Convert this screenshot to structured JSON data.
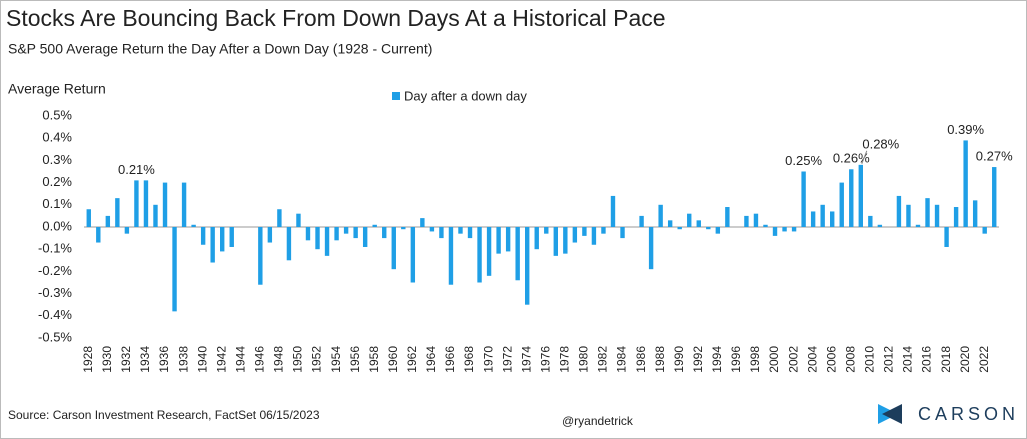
{
  "chart_data": {
    "type": "bar",
    "title": "Stocks Are Bouncing Back From Down Days At a Historical Pace",
    "subtitle": "S&P 500 Average Return the Day After a Down Day (1928 - Current)",
    "y_label": "Average Return",
    "source": "Source: Carson Investment Research, FactSet  06/15/2023",
    "credit": "@ryandetrick",
    "logo": "CARSON",
    "categories": [
      "1928",
      null,
      "1930",
      null,
      "1932",
      null,
      "1934",
      null,
      "1936",
      null,
      "1938",
      null,
      "1940",
      null,
      "1942",
      null,
      "1944",
      null,
      "1946",
      null,
      "1948",
      null,
      "1950",
      null,
      "1952",
      null,
      "1954",
      null,
      "1956",
      null,
      "1958",
      null,
      "1960",
      null,
      "1962",
      null,
      "1964",
      null,
      "1966",
      null,
      "1968",
      null,
      "1970",
      null,
      "1972",
      null,
      "1974",
      null,
      "1976",
      null,
      "1978",
      null,
      "1980",
      null,
      "1982",
      null,
      "1984",
      null,
      "1986",
      null,
      "1988",
      null,
      "1990",
      null,
      "1992",
      null,
      "1994",
      null,
      "1996",
      null,
      "1998",
      null,
      "2000",
      null,
      "2002",
      null,
      "2004",
      null,
      "2006",
      null,
      "2008",
      null,
      "2010",
      null,
      "2012",
      null,
      "2014",
      null,
      "2016",
      null,
      "2018",
      null,
      "2020",
      null,
      "2022",
      null
    ],
    "series": [
      {
        "name": "Day after a down day",
        "color": "#1f9fe6",
        "values": [
          0.08,
          -0.07,
          0.05,
          0.13,
          -0.03,
          0.21,
          0.21,
          0.1,
          0.2,
          -0.38,
          0.2,
          0.01,
          -0.08,
          -0.16,
          -0.11,
          -0.09,
          0.0,
          0.0,
          -0.26,
          -0.07,
          0.08,
          -0.15,
          0.06,
          -0.06,
          -0.1,
          -0.13,
          -0.06,
          -0.03,
          -0.05,
          -0.09,
          0.01,
          -0.05,
          -0.19,
          -0.01,
          -0.25,
          0.04,
          -0.02,
          -0.05,
          -0.26,
          -0.03,
          -0.05,
          -0.25,
          -0.22,
          -0.12,
          -0.11,
          -0.24,
          -0.35,
          -0.1,
          -0.03,
          -0.13,
          -0.12,
          -0.07,
          -0.04,
          -0.08,
          -0.03,
          0.14,
          -0.05,
          0.0,
          0.05,
          -0.19,
          0.1,
          0.03,
          -0.01,
          0.06,
          0.03,
          -0.01,
          -0.03,
          0.09,
          0.0,
          0.05,
          0.06,
          0.01,
          -0.04,
          -0.02,
          -0.02,
          0.25,
          0.07,
          0.1,
          0.07,
          0.2,
          0.26,
          0.28,
          0.05,
          0.01,
          0.0,
          0.14,
          0.1,
          0.01,
          0.13,
          0.1,
          -0.09,
          0.09,
          0.39,
          0.12,
          -0.03,
          0.27
        ],
        "value_labels": [
          null,
          null,
          null,
          null,
          null,
          "0.21%",
          null,
          null,
          null,
          null,
          null,
          null,
          null,
          null,
          null,
          null,
          null,
          null,
          null,
          null,
          null,
          null,
          null,
          null,
          null,
          null,
          null,
          null,
          null,
          null,
          null,
          null,
          null,
          null,
          null,
          null,
          null,
          null,
          null,
          null,
          null,
          null,
          null,
          null,
          null,
          null,
          null,
          null,
          null,
          null,
          null,
          null,
          null,
          null,
          null,
          null,
          null,
          null,
          null,
          null,
          null,
          null,
          null,
          null,
          null,
          null,
          null,
          null,
          null,
          null,
          null,
          null,
          null,
          null,
          null,
          "0.25%",
          null,
          null,
          null,
          null,
          "0.26%",
          "0.28%",
          null,
          null,
          null,
          null,
          null,
          null,
          null,
          null,
          null,
          null,
          "0.39%",
          null,
          null,
          "0.27%"
        ]
      }
    ],
    "ylim": [
      -0.5,
      0.5
    ],
    "yticks": [
      {
        "value": -0.5,
        "label": "-0.5%"
      },
      {
        "value": -0.4,
        "label": "-0.4%"
      },
      {
        "value": -0.3,
        "label": "-0.3%"
      },
      {
        "value": -0.2,
        "label": "-0.2%"
      },
      {
        "value": -0.1,
        "label": "-0.1%"
      },
      {
        "value": 0,
        "label": "0.0%"
      },
      {
        "value": 0.1,
        "label": "0.1%"
      },
      {
        "value": 0.2,
        "label": "0.2%"
      },
      {
        "value": 0.3,
        "label": "0.3%"
      },
      {
        "value": 0.4,
        "label": "0.4%"
      },
      {
        "value": 0.5,
        "label": "0.5%"
      }
    ],
    "grid": false,
    "legend": "top"
  }
}
